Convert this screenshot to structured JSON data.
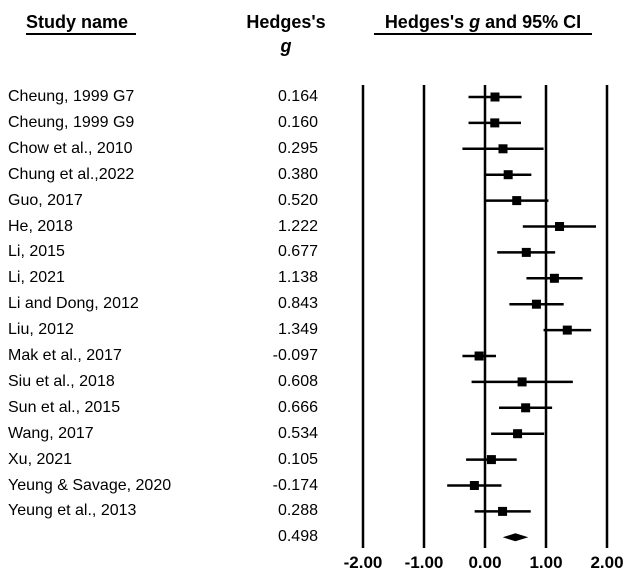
{
  "header": {
    "study_name": "Study name",
    "hedges_line1": "Hedges's",
    "hedges_line2": "g",
    "ci_prefix": "Hedges's ",
    "ci_g": "g",
    "ci_suffix": " and 95% CI"
  },
  "chart_data": {
    "type": "forest",
    "x_ticks": [
      "-2.00",
      "-1.00",
      "0.00",
      "1.00",
      "2.00"
    ],
    "xlim": [
      -2,
      2
    ],
    "studies": [
      {
        "name": "Cheung, 1999 G7",
        "g_label": "0.164",
        "g": 0.164,
        "lower": -0.27,
        "upper": 0.6
      },
      {
        "name": "Cheung, 1999 G9",
        "g_label": "0.160",
        "g": 0.16,
        "lower": -0.27,
        "upper": 0.59
      },
      {
        "name": "Chow et al., 2010",
        "g_label": "0.295",
        "g": 0.295,
        "lower": -0.37,
        "upper": 0.96
      },
      {
        "name": "Chung et al.,2022",
        "g_label": "0.380",
        "g": 0.38,
        "lower": 0.0,
        "upper": 0.76
      },
      {
        "name": "Guo, 2017",
        "g_label": "0.520",
        "g": 0.52,
        "lower": 0.0,
        "upper": 1.04
      },
      {
        "name": "He, 2018",
        "g_label": "1.222",
        "g": 1.222,
        "lower": 0.62,
        "upper": 1.82
      },
      {
        "name": "Li, 2015",
        "g_label": "0.677",
        "g": 0.677,
        "lower": 0.2,
        "upper": 1.15
      },
      {
        "name": "Li, 2021",
        "g_label": "1.138",
        "g": 1.138,
        "lower": 0.68,
        "upper": 1.6
      },
      {
        "name": "Li and Dong, 2012",
        "g_label": "0.843",
        "g": 0.843,
        "lower": 0.4,
        "upper": 1.29
      },
      {
        "name": "Liu, 2012",
        "g_label": "1.349",
        "g": 1.349,
        "lower": 0.96,
        "upper": 1.74
      },
      {
        "name": "Mak et al., 2017",
        "g_label": "-0.097",
        "g": -0.097,
        "lower": -0.37,
        "upper": 0.18
      },
      {
        "name": "Siu et al., 2018",
        "g_label": "0.608",
        "g": 0.608,
        "lower": -0.22,
        "upper": 1.44
      },
      {
        "name": "Sun et al., 2015",
        "g_label": "0.666",
        "g": 0.666,
        "lower": 0.23,
        "upper": 1.1
      },
      {
        "name": "Wang, 2017",
        "g_label": "0.534",
        "g": 0.534,
        "lower": 0.1,
        "upper": 0.97
      },
      {
        "name": "Xu, 2021",
        "g_label": "0.105",
        "g": 0.105,
        "lower": -0.31,
        "upper": 0.52
      },
      {
        "name": "Yeung & Savage, 2020",
        "g_label": "-0.174",
        "g": -0.174,
        "lower": -0.62,
        "upper": 0.27
      },
      {
        "name": "Yeung et al., 2013",
        "g_label": "0.288",
        "g": 0.288,
        "lower": -0.17,
        "upper": 0.75
      }
    ],
    "summary": {
      "g_label": "0.498",
      "g": 0.498,
      "lower": 0.29,
      "upper": 0.71
    }
  }
}
